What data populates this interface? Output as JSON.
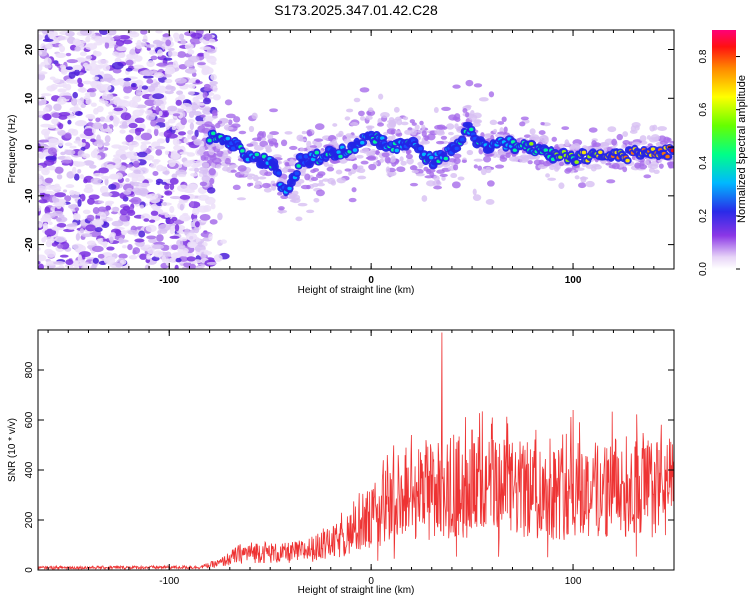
{
  "chart_data": [
    {
      "type": "heatmap",
      "title": "S173.2025.347.01.42.C28",
      "xlabel": "Height of straight line (km)",
      "ylabel": "Frequency (Hz)",
      "xlim": [
        -165,
        150
      ],
      "ylim": [
        -25,
        24
      ],
      "xticks": [
        -100,
        0,
        100
      ],
      "yticks": [
        -20,
        -10,
        0,
        10,
        20
      ],
      "colorbar": {
        "label": "Normalized spectral amplitude",
        "range": [
          0.0,
          0.9
        ],
        "ticks": [
          0.0,
          0.2,
          0.4,
          0.6,
          0.8
        ]
      },
      "ridge": {
        "description_points_x": [
          -80,
          -70,
          -60,
          -50,
          -42,
          -35,
          -25,
          -15,
          -5,
          0,
          10,
          20,
          30,
          40,
          48,
          55,
          65,
          75,
          85,
          95,
          105,
          115,
          125,
          135,
          148
        ],
        "description_points_y": [
          2,
          1,
          -2,
          -3,
          -9,
          -3,
          -2,
          -1,
          1,
          2,
          0,
          1,
          -3,
          -1,
          4,
          0,
          1,
          0,
          -1,
          -2,
          -2,
          -1,
          -2,
          -1,
          -1
        ]
      }
    },
    {
      "type": "line",
      "xlabel": "Height of straight line (km)",
      "ylabel": "SNR (10 * v/v)",
      "xlim": [
        -165,
        150
      ],
      "ylim": [
        0,
        960
      ],
      "xticks": [
        -100,
        0,
        100
      ],
      "yticks": [
        0,
        200,
        400,
        600,
        800
      ],
      "series": [
        {
          "name": "SNR",
          "color": "#ee3333",
          "envelope_x": [
            -165,
            -85,
            -75,
            -65,
            -55,
            -45,
            -35,
            -25,
            -15,
            -5,
            5,
            15,
            25,
            35,
            45,
            55,
            65,
            75,
            85,
            95,
            105,
            115,
            125,
            135,
            150
          ],
          "envelope_mean": [
            10,
            12,
            30,
            70,
            80,
            70,
            80,
            100,
            130,
            190,
            260,
            320,
            340,
            350,
            360,
            355,
            350,
            345,
            340,
            340,
            345,
            350,
            360,
            355,
            350
          ],
          "spike_peaks": [
            [
              35,
              950
            ],
            [
              8,
              460
            ],
            [
              20,
              540
            ],
            [
              50,
              560
            ],
            [
              60,
              610
            ],
            [
              100,
              640
            ]
          ]
        }
      ]
    }
  ]
}
